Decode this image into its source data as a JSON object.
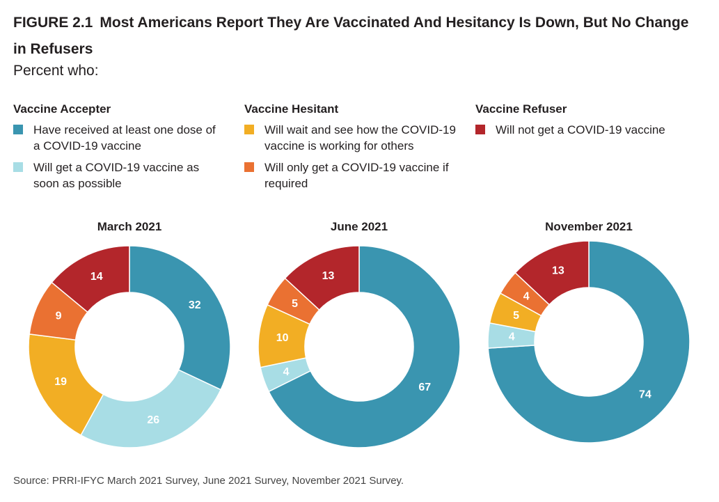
{
  "figure": {
    "number": "FIGURE 2.1",
    "title": "Most Americans Report They Are Vaccinated And Hesitancy Is Down, But No Change in Refusers",
    "subtitle": "Percent who:"
  },
  "legend": {
    "groups": [
      {
        "heading": "Vaccine Accepter",
        "items": [
          {
            "label": "Have received at least one dose of a COVID-19 vaccine",
            "color": "#3a95b0"
          },
          {
            "label": "Will get a COVID-19 vaccine as soon as possible",
            "color": "#a8dde5"
          }
        ]
      },
      {
        "heading": "Vaccine Hesitant",
        "items": [
          {
            "label": "Will wait and see how the COVID-19 vaccine is working for others",
            "color": "#f2ae24"
          },
          {
            "label": "Will only get a COVID-19 vaccine if required",
            "color": "#ea7132"
          }
        ]
      },
      {
        "heading": "Vaccine Refuser",
        "items": [
          {
            "label": "Will not get a COVID-19 vaccine",
            "color": "#b3262b"
          }
        ]
      }
    ]
  },
  "chart_data": [
    {
      "type": "pie",
      "style": "donut",
      "title": "March 2021",
      "categories": [
        "Have received at least one dose of a COVID-19 vaccine",
        "Will get a COVID-19 vaccine as soon as possible",
        "Will wait and see how the COVID-19 vaccine is working for others",
        "Will only get a COVID-19 vaccine if required",
        "Will not get a COVID-19 vaccine"
      ],
      "values": [
        32,
        26,
        19,
        9,
        14
      ],
      "colors": [
        "#3a95b0",
        "#a8dde5",
        "#f2ae24",
        "#ea7132",
        "#b3262b"
      ],
      "label_colors": [
        "#ffffff",
        "#ffffff",
        "#ffffff",
        "#ffffff",
        "#ffffff"
      ]
    },
    {
      "type": "pie",
      "style": "donut",
      "title": "June 2021",
      "categories": [
        "Have received at least one dose of a COVID-19 vaccine",
        "Will get a COVID-19 vaccine as soon as possible",
        "Will wait and see how the COVID-19 vaccine is working for others",
        "Will only get a COVID-19 vaccine if required",
        "Will not get a COVID-19 vaccine"
      ],
      "values": [
        67,
        4,
        10,
        5,
        13
      ],
      "colors": [
        "#3a95b0",
        "#a8dde5",
        "#f2ae24",
        "#ea7132",
        "#b3262b"
      ],
      "label_colors": [
        "#ffffff",
        "#ffffff",
        "#ffffff",
        "#ffffff",
        "#ffffff"
      ]
    },
    {
      "type": "pie",
      "style": "donut",
      "title": "November 2021",
      "categories": [
        "Have received at least one dose of a COVID-19 vaccine",
        "Will get a COVID-19 vaccine as soon as possible",
        "Will wait and see how the COVID-19 vaccine is working for others",
        "Will only get a COVID-19 vaccine if required",
        "Will not get a COVID-19 vaccine"
      ],
      "values": [
        74,
        4,
        5,
        4,
        13
      ],
      "colors": [
        "#3a95b0",
        "#a8dde5",
        "#f2ae24",
        "#ea7132",
        "#b3262b"
      ],
      "label_colors": [
        "#ffffff",
        "#ffffff",
        "#ffffff",
        "#ffffff",
        "#ffffff"
      ]
    }
  ],
  "source": "Source: PRRI-IFYC March 2021 Survey, June 2021 Survey, November 2021 Survey."
}
